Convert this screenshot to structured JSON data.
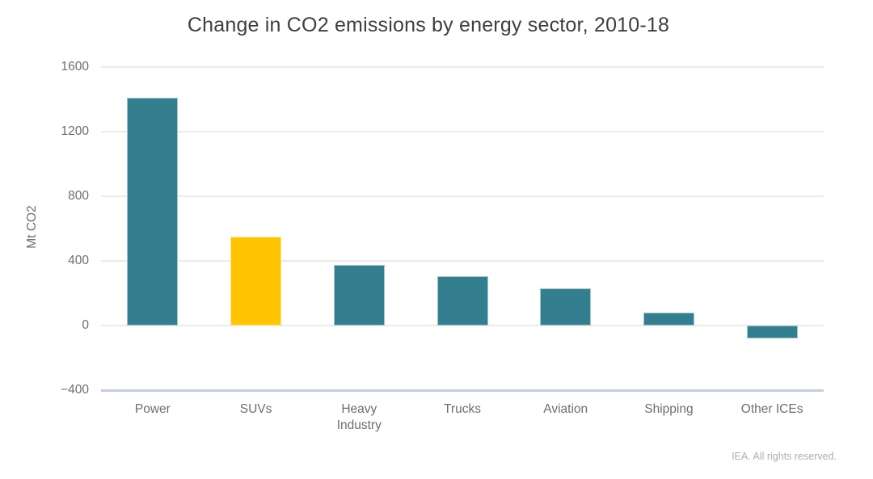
{
  "footer": "IEA. All rights reserved.",
  "chart_data": {
    "type": "bar",
    "title": "Change in CO2 emissions by energy sector, 2010-18",
    "xlabel": "",
    "ylabel": "Mt CO2",
    "categories": [
      "Power",
      "SUVs",
      "Heavy Industry",
      "Trucks",
      "Aviation",
      "Shipping",
      "Other ICEs"
    ],
    "values": [
      1410,
      550,
      375,
      305,
      230,
      80,
      -80
    ],
    "unit": "Mt CO2",
    "ylim": [
      -400,
      1600
    ],
    "yticks": [
      1600,
      1200,
      800,
      400,
      0,
      -400
    ],
    "grid": true,
    "legend": false,
    "highlight_index": 1,
    "colors": {
      "bar_default": "#337f90",
      "bar_highlight": "#ffc402",
      "grid_line": "#ebebeb",
      "axis_bottom_line": "#c3cde5",
      "title_text": "#3e3e3e",
      "axis_text": "#6e6e6e",
      "footer_text": "#aeaeae"
    }
  }
}
